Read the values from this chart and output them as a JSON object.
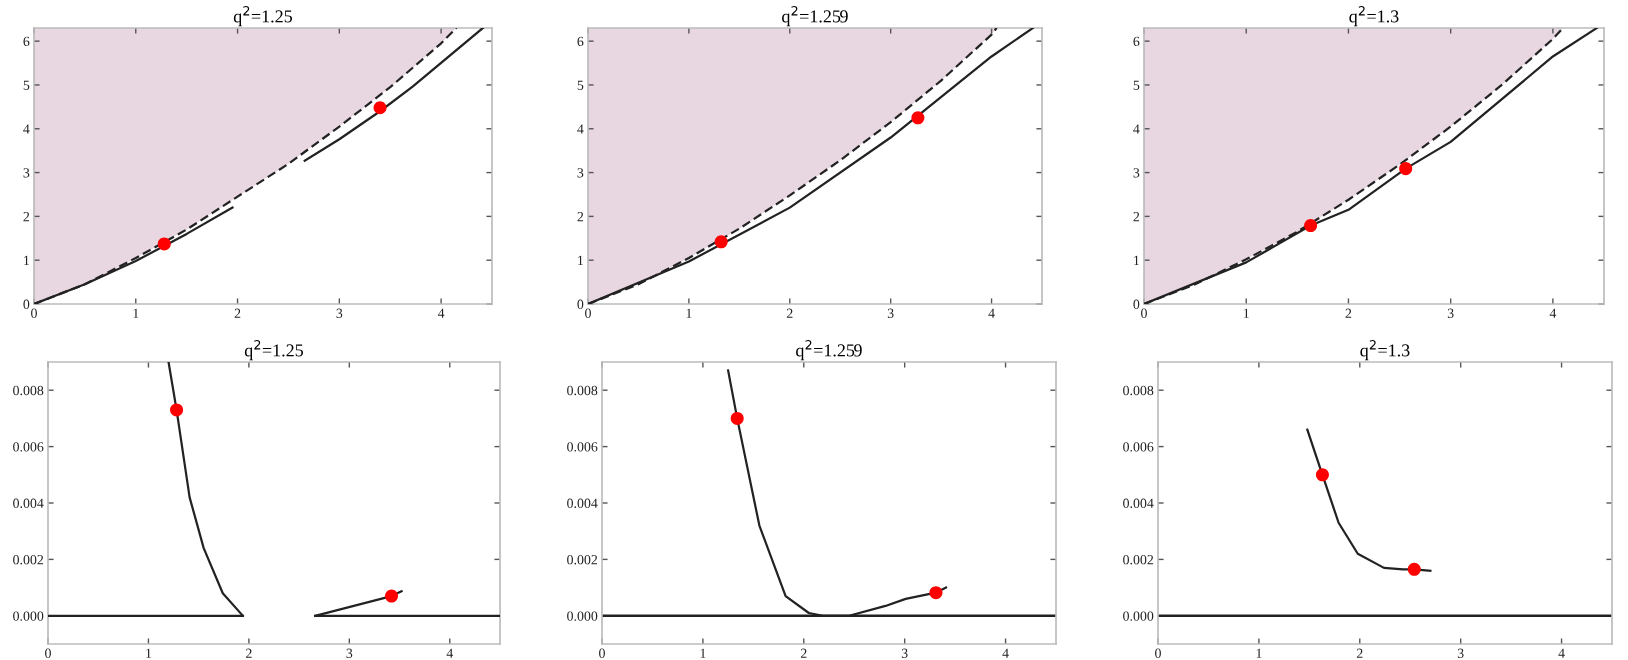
{
  "chart_data": [
    {
      "type": "line",
      "title": "q$^{2}$=1.25",
      "xlim": [
        0,
        4.5
      ],
      "ylim": [
        0,
        6.3
      ],
      "xticks": [
        0,
        1,
        2,
        3,
        4
      ],
      "yticks": [
        0,
        1,
        2,
        3,
        4,
        5,
        6
      ],
      "series": [
        {
          "line_style": "dashed",
          "color": "#222222",
          "x": [
            0,
            0.5,
            1,
            1.5,
            2,
            2.5,
            3,
            3.5,
            4,
            4.15
          ],
          "values": [
            0,
            0.45,
            1.05,
            1.7,
            2.45,
            3.2,
            4.05,
            4.95,
            5.95,
            6.3
          ],
          "lower": [
            0,
            0.45,
            1.05,
            1.7,
            2.45,
            3.2,
            4.05,
            4.95,
            5.95,
            6.3
          ],
          "upper": [
            6.3,
            6.3,
            6.3,
            6.3,
            6.3,
            6.3,
            6.3,
            6.3,
            6.3,
            6.3
          ]
        },
        {
          "line_style": "solid",
          "color": "#222222",
          "x": [
            0,
            0.5,
            1,
            1.5,
            1.95
          ],
          "values": [
            0,
            0.45,
            0.98,
            1.6,
            2.2
          ]
        },
        {
          "line_style": "solid",
          "color": "#222222",
          "x": [
            2.66,
            3.0,
            3.4,
            3.72,
            4.41
          ],
          "values": [
            3.27,
            3.76,
            4.4,
            4.96,
            6.3
          ]
        },
        {
          "type": "scatter",
          "marker": "circle",
          "color": "#ff0000",
          "x": [
            1.28,
            3.4
          ],
          "values": [
            1.37,
            4.48
          ]
        }
      ]
    },
    {
      "type": "line",
      "title": "q$^{2}$=1.259",
      "xlim": [
        0,
        4.5
      ],
      "ylim": [
        0,
        6.3
      ],
      "xticks": [
        0,
        1,
        2,
        3,
        4
      ],
      "yticks": [
        0,
        1,
        2,
        3,
        4,
        5,
        6
      ],
      "series": [
        {
          "line_style": "dashed",
          "color": "#222222",
          "x": [
            0,
            0.5,
            1,
            1.5,
            2,
            2.5,
            3,
            3.5,
            4,
            4.05
          ],
          "values": [
            0,
            0.45,
            1.05,
            1.72,
            2.48,
            3.28,
            4.15,
            5.1,
            6.15,
            6.3
          ],
          "lower": [
            0,
            0.45,
            1.05,
            1.72,
            2.48,
            3.28,
            4.15,
            5.1,
            6.15,
            6.3
          ],
          "upper": [
            6.3,
            6.3,
            6.3,
            6.3,
            6.3,
            6.3,
            6.3,
            6.3,
            6.3,
            6.3
          ]
        },
        {
          "line_style": "solid",
          "color": "#222222",
          "x": [
            0,
            1,
            2,
            3,
            4,
            4.41
          ],
          "values": [
            0,
            0.97,
            2.2,
            3.8,
            5.65,
            6.3
          ]
        },
        {
          "type": "scatter",
          "marker": "circle",
          "color": "#ff0000",
          "x": [
            1.32,
            3.27
          ],
          "values": [
            1.42,
            4.25
          ]
        }
      ]
    },
    {
      "type": "line",
      "title": "q$^{2}$=1.3",
      "xlim": [
        0,
        4.5
      ],
      "ylim": [
        0,
        6.3
      ],
      "xticks": [
        0,
        1,
        2,
        3,
        4
      ],
      "yticks": [
        0,
        1,
        2,
        3,
        4,
        5,
        6
      ],
      "series": [
        {
          "line_style": "dashed",
          "color": "#222222",
          "x": [
            0,
            0.5,
            1,
            1.5,
            2,
            2.5,
            3,
            3.5,
            4,
            4.1
          ],
          "values": [
            0,
            0.45,
            1.02,
            1.65,
            2.38,
            3.18,
            4.05,
            5.0,
            6.05,
            6.3
          ],
          "lower": [
            0,
            0.45,
            1.02,
            1.65,
            2.38,
            3.18,
            4.05,
            5.0,
            6.05,
            6.3
          ],
          "upper": [
            6.3,
            6.3,
            6.3,
            6.3,
            6.3,
            6.3,
            6.3,
            6.3,
            6.3,
            6.3
          ]
        },
        {
          "line_style": "solid",
          "color": "#222222",
          "x": [
            0,
            1,
            1.63,
            2,
            2.56,
            3,
            4,
            4.43
          ],
          "values": [
            0,
            0.95,
            1.79,
            2.15,
            3.09,
            3.7,
            5.65,
            6.3
          ]
        },
        {
          "type": "scatter",
          "marker": "circle",
          "color": "#ff0000",
          "x": [
            1.63,
            2.56
          ],
          "values": [
            1.79,
            3.09
          ]
        }
      ]
    },
    {
      "type": "line",
      "title": "q$^{2}$=1.25",
      "xlim": [
        0,
        4.5
      ],
      "ylim": [
        -0.001,
        0.009
      ],
      "xticks": [
        0,
        1,
        2,
        3,
        4
      ],
      "yticks": [
        {
          "value": 0,
          "label": "0.000"
        },
        {
          "value": 0.002,
          "label": "0.002"
        },
        {
          "value": 0.004,
          "label": "0.004"
        },
        {
          "value": 0.006,
          "label": "0.006"
        },
        {
          "value": 0.008,
          "label": "0.008"
        }
      ],
      "series": [
        {
          "line_style": "solid",
          "color": "#222222",
          "x": [
            0,
            1.94,
            2.3,
            2.66,
            4.5
          ],
          "values": [
            0,
            0,
            null,
            0,
            0
          ]
        },
        {
          "line_style": "solid",
          "color": "#222222",
          "x": [
            1.2,
            1.28,
            1.41,
            1.55,
            1.74,
            1.94
          ],
          "values": [
            0.009,
            0.0073,
            0.0042,
            0.0024,
            0.0008,
            0
          ]
        },
        {
          "line_style": "solid",
          "color": "#222222",
          "x": [
            2.66,
            3.42,
            3.52
          ],
          "values": [
            0,
            0.0007,
            0.00087
          ]
        },
        {
          "type": "scatter",
          "marker": "circle",
          "color": "#ff0000",
          "x": [
            1.28,
            3.42
          ],
          "values": [
            0.0073,
            0.0007
          ]
        }
      ]
    },
    {
      "type": "line",
      "title": "q$^{2}$=1.259",
      "xlim": [
        0,
        4.5
      ],
      "ylim": [
        -0.001,
        0.009
      ],
      "xticks": [
        0,
        1,
        2,
        3,
        4
      ],
      "yticks": [
        {
          "value": 0,
          "label": "0.000"
        },
        {
          "value": 0.002,
          "label": "0.002"
        },
        {
          "value": 0.004,
          "label": "0.004"
        },
        {
          "value": 0.006,
          "label": "0.006"
        },
        {
          "value": 0.008,
          "label": "0.008"
        }
      ],
      "ref_lines": [
        {
          "axis": "y",
          "value": 0,
          "color": "#222222"
        }
      ],
      "series": [
        {
          "line_style": "solid",
          "color": "#222222",
          "x": [
            1.25,
            1.34,
            1.56,
            1.82,
            2.05,
            2.19,
            2.45,
            2.81,
            3.01,
            3.31,
            3.41
          ],
          "values": [
            0.0087,
            0.007,
            0.0032,
            0.0007,
            0.0001,
            0,
            0,
            0.00035,
            0.0006,
            0.00082,
            0.001
          ]
        },
        {
          "type": "scatter",
          "marker": "circle",
          "color": "#ff0000",
          "x": [
            1.34,
            3.31
          ],
          "values": [
            0.007,
            0.00082
          ]
        }
      ]
    },
    {
      "type": "line",
      "title": "q$^{2}$=1.3",
      "xlim": [
        0,
        4.5
      ],
      "ylim": [
        -0.001,
        0.009
      ],
      "xticks": [
        0,
        1,
        2,
        3,
        4
      ],
      "yticks": [
        {
          "value": 0,
          "label": "0.000"
        },
        {
          "value": 0.002,
          "label": "0.002"
        },
        {
          "value": 0.004,
          "label": "0.004"
        },
        {
          "value": 0.006,
          "label": "0.006"
        },
        {
          "value": 0.008,
          "label": "0.008"
        }
      ],
      "ref_lines": [
        {
          "axis": "y",
          "value": 0,
          "color": "#222222"
        }
      ],
      "series": [
        {
          "line_style": "solid",
          "color": "#222222",
          "x": [
            1.48,
            1.63,
            1.79,
            1.98,
            2.24,
            2.43,
            2.54,
            2.7
          ],
          "values": [
            0.0066,
            0.005,
            0.0033,
            0.0022,
            0.0017,
            0.00165,
            0.00165,
            0.0016
          ]
        },
        {
          "type": "scatter",
          "marker": "circle",
          "color": "#ff0000",
          "x": [
            1.63,
            2.54
          ],
          "values": [
            0.005,
            0.00165
          ]
        }
      ]
    }
  ]
}
